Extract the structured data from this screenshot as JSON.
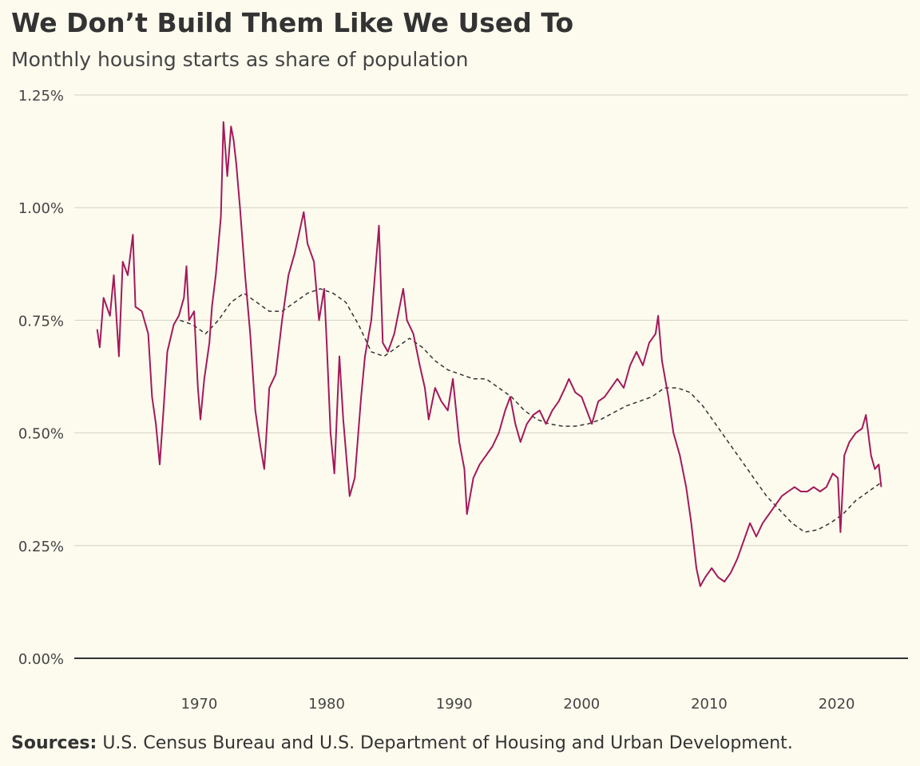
{
  "chart_data": {
    "type": "line",
    "title": "We Don’t Build Them Like We Used To",
    "subtitle": "Monthly housing starts as share of population",
    "source_label": "Sources:",
    "source_text": "U.S. Census Bureau and U.S. Department of Housing and Urban Development.",
    "xlim": [
      1960.2,
      2025.6
    ],
    "xticks": [
      1970,
      1980,
      1990,
      2000,
      2010,
      2020
    ],
    "ylim": [
      0,
      1.25
    ],
    "yticks": [
      {
        "value": 0,
        "label": "0.00%"
      },
      {
        "value": 0.25,
        "label": "0.25%"
      },
      {
        "value": 0.5,
        "label": "0.50%"
      },
      {
        "value": 0.75,
        "label": "0.75%"
      },
      {
        "value": 1,
        "label": "1.00%"
      },
      {
        "value": 1.25,
        "label": "1.25%"
      }
    ],
    "grid": true,
    "series": [
      {
        "color": "#a3195b",
        "dash": false,
        "x": [
          1962.0,
          1962.2,
          1962.5,
          1963.0,
          1963.3,
          1963.7,
          1964.0,
          1964.4,
          1964.8,
          1965.0,
          1965.5,
          1966.0,
          1966.3,
          1966.6,
          1966.9,
          1967.2,
          1967.5,
          1968.0,
          1968.4,
          1968.8,
          1969.0,
          1969.2,
          1969.6,
          1969.9,
          1970.1,
          1970.4,
          1970.8,
          1971.0,
          1971.3,
          1971.7,
          1971.9,
          1972.2,
          1972.5,
          1972.7,
          1972.9,
          1973.2,
          1973.6,
          1974.0,
          1974.4,
          1974.8,
          1975.1,
          1975.5,
          1976.0,
          1976.5,
          1977.0,
          1977.5,
          1978.2,
          1978.5,
          1979.0,
          1979.4,
          1979.8,
          1980.0,
          1980.3,
          1980.6,
          1981.0,
          1981.3,
          1981.8,
          1982.2,
          1982.7,
          1983.0,
          1983.5,
          1984.1,
          1984.4,
          1984.8,
          1985.3,
          1986.0,
          1986.3,
          1986.8,
          1987.3,
          1987.7,
          1988.0,
          1988.5,
          1989.0,
          1989.5,
          1989.9,
          1990.4,
          1990.8,
          1991.0,
          1991.5,
          1992.0,
          1992.5,
          1993.0,
          1993.5,
          1994.0,
          1994.4,
          1994.8,
          1995.2,
          1995.7,
          1996.2,
          1996.7,
          1997.2,
          1997.7,
          1998.2,
          1998.7,
          1999.0,
          1999.5,
          2000.0,
          2000.4,
          2000.8,
          2001.3,
          2001.8,
          2002.3,
          2002.8,
          2003.3,
          2003.8,
          2004.3,
          2004.8,
          2005.3,
          2005.8,
          2006.0,
          2006.3,
          2006.8,
          2007.2,
          2007.7,
          2008.2,
          2008.6,
          2009.0,
          2009.3,
          2009.7,
          2010.2,
          2010.7,
          2011.2,
          2011.7,
          2012.2,
          2012.7,
          2013.2,
          2013.7,
          2014.2,
          2014.7,
          2015.2,
          2015.7,
          2016.2,
          2016.7,
          2017.2,
          2017.7,
          2018.2,
          2018.7,
          2019.2,
          2019.7,
          2020.1,
          2020.3,
          2020.6,
          2021.0,
          2021.5,
          2022.0,
          2022.3,
          2022.7,
          2023.0,
          2023.3,
          2023.5
        ],
        "values": [
          0.73,
          0.69,
          0.8,
          0.76,
          0.85,
          0.67,
          0.88,
          0.85,
          0.94,
          0.78,
          0.77,
          0.72,
          0.58,
          0.52,
          0.43,
          0.55,
          0.68,
          0.74,
          0.76,
          0.8,
          0.87,
          0.75,
          0.77,
          0.6,
          0.53,
          0.62,
          0.7,
          0.78,
          0.85,
          0.98,
          1.19,
          1.07,
          1.18,
          1.15,
          1.1,
          1.0,
          0.85,
          0.72,
          0.55,
          0.47,
          0.42,
          0.6,
          0.63,
          0.75,
          0.85,
          0.9,
          0.99,
          0.92,
          0.88,
          0.75,
          0.82,
          0.7,
          0.5,
          0.41,
          0.67,
          0.53,
          0.36,
          0.4,
          0.58,
          0.67,
          0.75,
          0.96,
          0.7,
          0.68,
          0.72,
          0.82,
          0.75,
          0.72,
          0.65,
          0.6,
          0.53,
          0.6,
          0.57,
          0.55,
          0.62,
          0.48,
          0.42,
          0.32,
          0.4,
          0.43,
          0.45,
          0.47,
          0.5,
          0.55,
          0.58,
          0.52,
          0.48,
          0.52,
          0.54,
          0.55,
          0.52,
          0.55,
          0.57,
          0.6,
          0.62,
          0.59,
          0.58,
          0.55,
          0.52,
          0.57,
          0.58,
          0.6,
          0.62,
          0.6,
          0.65,
          0.68,
          0.65,
          0.7,
          0.72,
          0.76,
          0.66,
          0.58,
          0.5,
          0.45,
          0.38,
          0.3,
          0.2,
          0.16,
          0.18,
          0.2,
          0.18,
          0.17,
          0.19,
          0.22,
          0.26,
          0.3,
          0.27,
          0.3,
          0.32,
          0.34,
          0.36,
          0.37,
          0.38,
          0.37,
          0.37,
          0.38,
          0.37,
          0.38,
          0.41,
          0.4,
          0.28,
          0.45,
          0.48,
          0.5,
          0.51,
          0.54,
          0.45,
          0.42,
          0.43,
          0.38
        ]
      },
      {
        "color": "#333333",
        "dash": true,
        "x": [
          1968.5,
          1969.5,
          1970.5,
          1971.5,
          1972.5,
          1973.5,
          1974.5,
          1975.5,
          1976.5,
          1977.5,
          1978.5,
          1979.5,
          1980.5,
          1981.5,
          1982.5,
          1983.5,
          1984.5,
          1985.5,
          1986.5,
          1987.5,
          1988.5,
          1989.5,
          1990.5,
          1991.5,
          1992.5,
          1993.5,
          1994.5,
          1995.5,
          1996.5,
          1997.5,
          1998.5,
          1999.5,
          2000.5,
          2001.5,
          2002.5,
          2003.5,
          2004.5,
          2005.5,
          2006.5,
          2007.5,
          2008.5,
          2009.5,
          2010.5,
          2011.5,
          2012.5,
          2013.5,
          2014.5,
          2015.5,
          2016.5,
          2017.5,
          2018.5,
          2019.5,
          2020.5,
          2021.5,
          2022.5,
          2023.5
        ],
        "values": [
          0.75,
          0.74,
          0.72,
          0.75,
          0.79,
          0.81,
          0.79,
          0.77,
          0.77,
          0.79,
          0.81,
          0.82,
          0.81,
          0.79,
          0.74,
          0.68,
          0.67,
          0.69,
          0.71,
          0.69,
          0.66,
          0.64,
          0.63,
          0.62,
          0.62,
          0.6,
          0.58,
          0.55,
          0.53,
          0.52,
          0.515,
          0.515,
          0.52,
          0.53,
          0.545,
          0.56,
          0.57,
          0.58,
          0.6,
          0.6,
          0.59,
          0.56,
          0.52,
          0.48,
          0.44,
          0.4,
          0.36,
          0.33,
          0.3,
          0.28,
          0.285,
          0.3,
          0.32,
          0.35,
          0.37,
          0.39
        ]
      }
    ]
  }
}
